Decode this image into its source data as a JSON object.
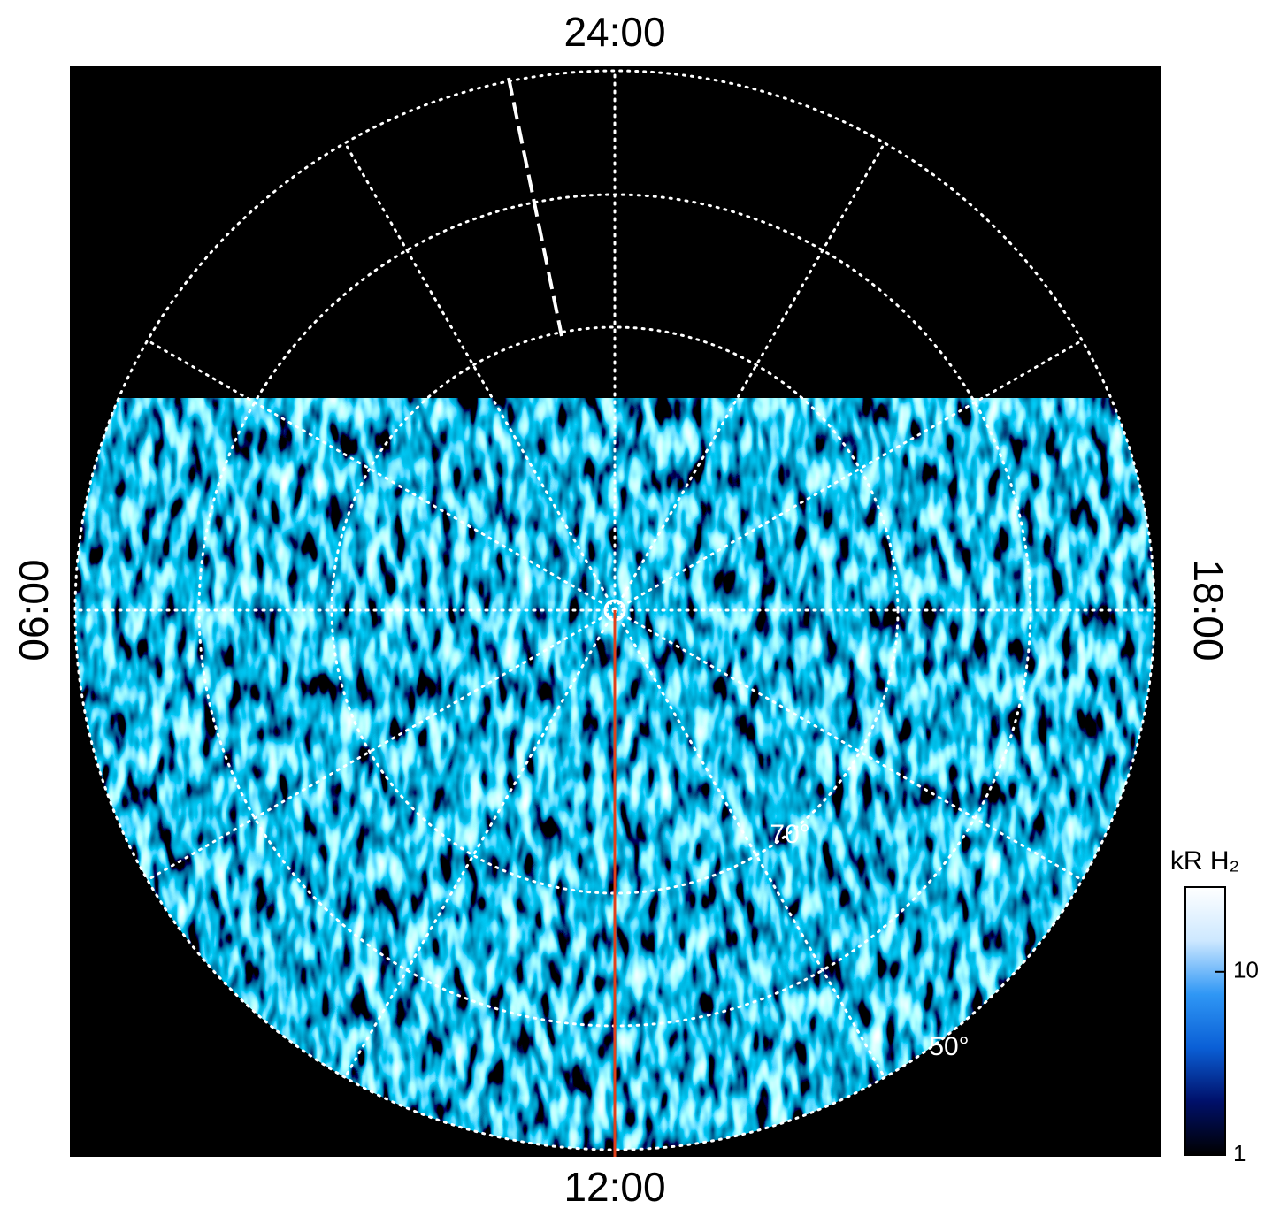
{
  "chart_data": {
    "type": "polar-map",
    "hour_labels": {
      "top": "24:00",
      "right": "18:00",
      "bottom": "12:00",
      "left": "06:00"
    },
    "latitude_labels": [
      "70°",
      "50°"
    ],
    "colorbar": {
      "title": "kR H₂",
      "scale": "log",
      "lim": [
        1,
        29
      ],
      "ticks": [
        1,
        10
      ],
      "colors": [
        "#000000",
        "#00106a",
        "#0a5fd6",
        "#2f97f5",
        "#cde8ff",
        "#ffffff"
      ]
    }
  }
}
